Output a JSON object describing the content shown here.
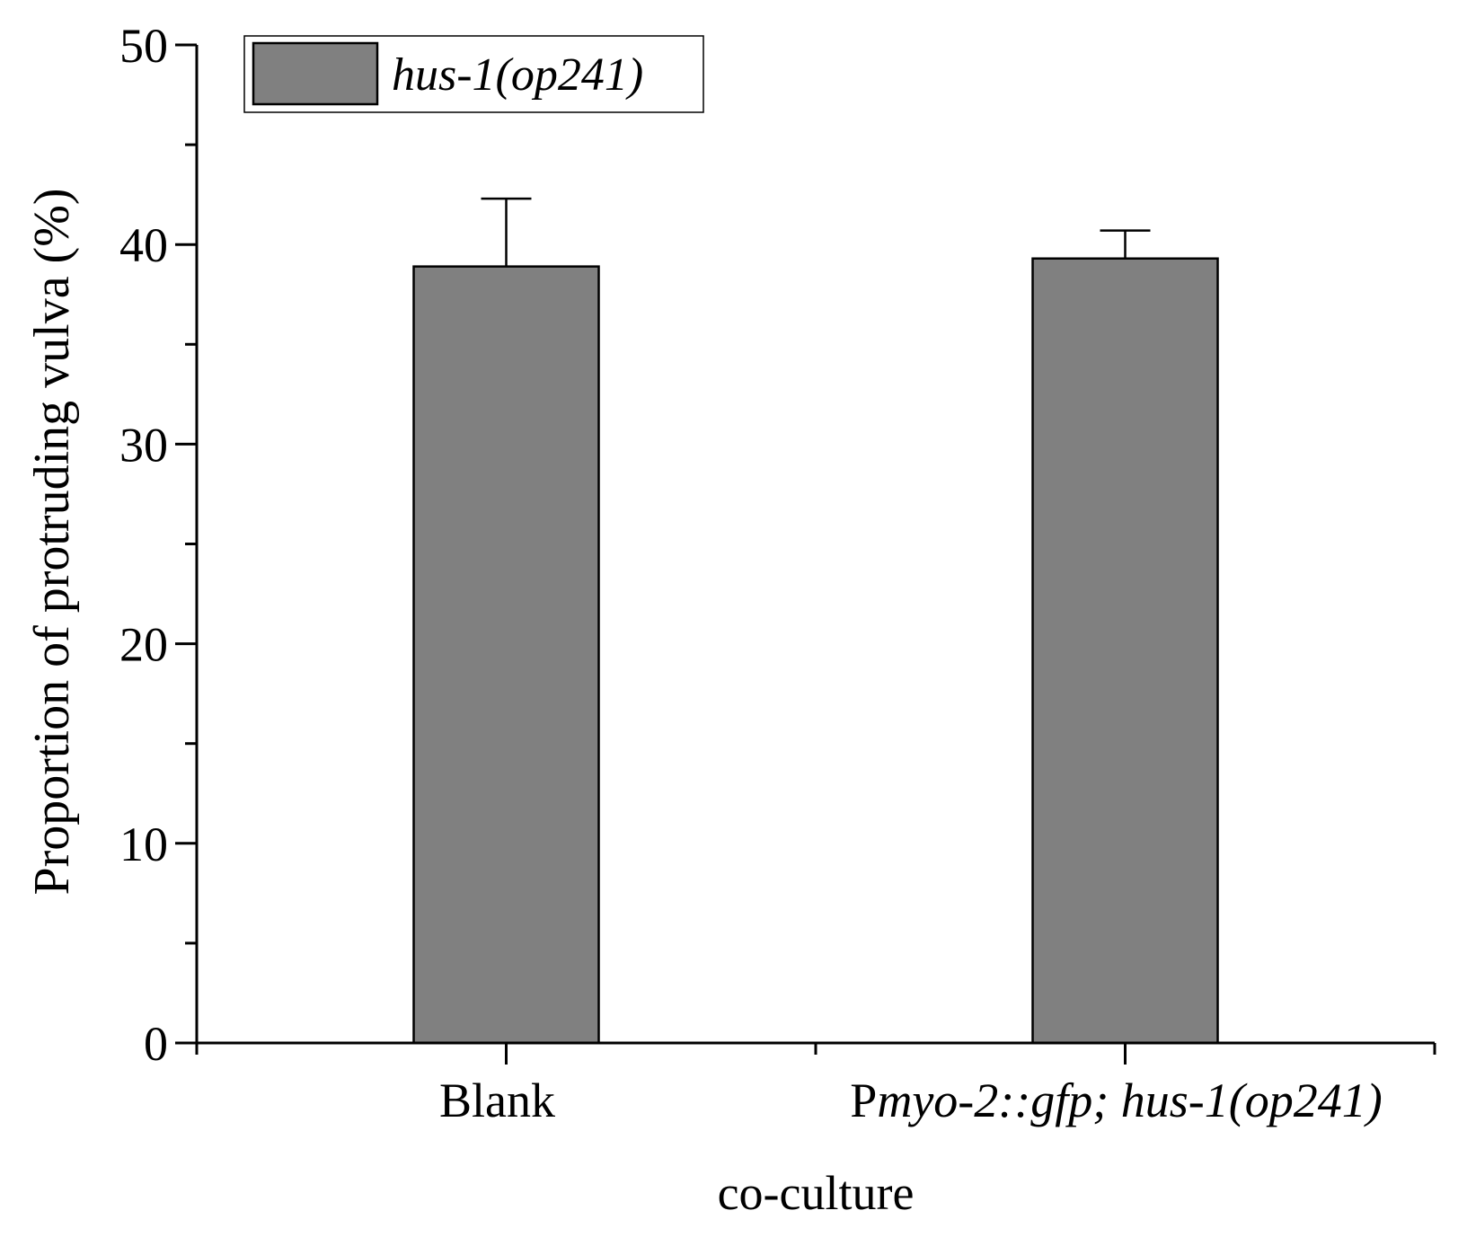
{
  "chart_data": {
    "type": "bar",
    "categories": [
      "Blank",
      "Pmyo-2::gfp; hus-1(op241)"
    ],
    "category_labels": [
      [
        {
          "text": "Blank",
          "italic": false
        }
      ],
      [
        {
          "text": "P",
          "italic": false
        },
        {
          "text": "myo-2::gfp; hus-1(op241)",
          "italic": true
        }
      ]
    ],
    "series": [
      {
        "name": "hus-1(op241)",
        "values": [
          38.9,
          39.3
        ],
        "error": [
          3.4,
          1.4
        ],
        "color": "#808080"
      }
    ],
    "xlabel": "co-culture",
    "ylabel": "Proportion of protruding vulva (%)",
    "ylim": [
      0,
      50
    ],
    "yticks": [
      0,
      10,
      20,
      30,
      40,
      50
    ],
    "ytick_labels": [
      "0",
      "10",
      "20",
      "30",
      "40",
      "50"
    ],
    "grid": false,
    "legend": {
      "position": "top-left",
      "italic": true
    }
  }
}
